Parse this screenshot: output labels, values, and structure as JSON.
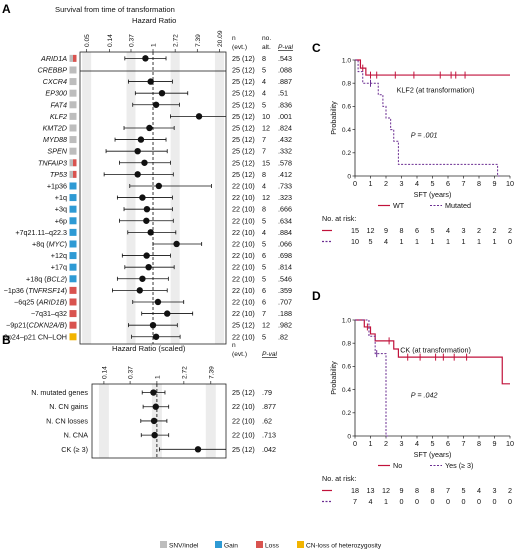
{
  "figure": {
    "panel_labels": [
      "A",
      "B",
      "C",
      "D"
    ],
    "colors": {
      "snv_indel": "#bdbdbd",
      "gain": "#2e9ad4",
      "loss": "#d9534f",
      "cn_loh": "#f2b400",
      "wt_line": "#c1123b",
      "mutated_line": "#6a2c91",
      "band": "#ececec"
    },
    "legend": [
      {
        "label": "SNV/indel",
        "color": "#bdbdbd"
      },
      {
        "label": "Gain",
        "color": "#2e9ad4"
      },
      {
        "label": "Loss",
        "color": "#d9534f"
      },
      {
        "label": "CN-loss of heterozygosity",
        "color": "#f2b400"
      }
    ]
  },
  "chart_data": [
    {
      "type": "scatter",
      "panel": "A",
      "title": "Survival from time of transformation",
      "xlabel": "Hazard Ratio",
      "x_scale": "log",
      "ticks": [
        "0.05",
        "0.14",
        "0.37",
        "1",
        "2.72",
        "7.39",
        "20.09"
      ],
      "tick_values": [
        0.05,
        0.14,
        0.37,
        1,
        2.72,
        7.39,
        20.09
      ],
      "reference_line": 1,
      "columns": {
        "n": "n",
        "n_sub": "(evt.)",
        "alt": "no.",
        "alt_sub": "alt.",
        "p": "P-val"
      },
      "rows": [
        {
          "label": "ARID1A",
          "italic": true,
          "types": [
            "snv_indel",
            "loss"
          ],
          "hr": 0.71,
          "lo": 0.28,
          "hi": 1.8,
          "n": "25 (12)",
          "alt": "8",
          "p": ".543"
        },
        {
          "label": "CREBBP",
          "italic": true,
          "types": [
            "snv_indel"
          ],
          "hr": null,
          "lo": null,
          "hi": null,
          "n": "25 (12)",
          "alt": "5",
          "p": ".088"
        },
        {
          "label": "CXCR4",
          "italic": true,
          "types": [
            "snv_indel"
          ],
          "hr": 0.9,
          "lo": 0.33,
          "hi": 2.4,
          "n": "25 (12)",
          "alt": "4",
          "p": ".887"
        },
        {
          "label": "EP300",
          "italic": true,
          "types": [
            "snv_indel"
          ],
          "hr": 1.5,
          "lo": 0.45,
          "hi": 4.8,
          "n": "25 (12)",
          "alt": "4",
          "p": ".51"
        },
        {
          "label": "FAT4",
          "italic": true,
          "types": [
            "snv_indel"
          ],
          "hr": 1.15,
          "lo": 0.4,
          "hi": 3.3,
          "n": "25 (12)",
          "alt": "5",
          "p": ".836"
        },
        {
          "label": "KLF2",
          "italic": true,
          "types": [
            "snv_indel"
          ],
          "hr": 8.0,
          "lo": 2.2,
          "hi": 30,
          "n": "25 (12)",
          "alt": "10",
          "p": ".001"
        },
        {
          "label": "KMT2D",
          "italic": true,
          "types": [
            "snv_indel"
          ],
          "hr": 0.85,
          "lo": 0.27,
          "hi": 2.6,
          "n": "25 (12)",
          "alt": "12",
          "p": ".824"
        },
        {
          "label": "MYD88",
          "italic": true,
          "types": [
            "snv_indel"
          ],
          "hr": 0.58,
          "lo": 0.18,
          "hi": 1.8,
          "n": "25 (12)",
          "alt": "7",
          "p": ".432"
        },
        {
          "label": "SPEN",
          "italic": true,
          "types": [
            "snv_indel"
          ],
          "hr": 0.5,
          "lo": 0.12,
          "hi": 1.9,
          "n": "25 (12)",
          "alt": "7",
          "p": ".332"
        },
        {
          "label": "TNFAIP3",
          "italic": true,
          "types": [
            "snv_indel",
            "loss"
          ],
          "hr": 0.68,
          "lo": 0.22,
          "hi": 2.2,
          "n": "25 (12)",
          "alt": "15",
          "p": ".578"
        },
        {
          "label": "TP53",
          "italic": true,
          "types": [
            "snv_indel",
            "loss"
          ],
          "hr": 0.5,
          "lo": 0.11,
          "hi": 2.5,
          "n": "25 (12)",
          "alt": "8",
          "p": ".412"
        },
        {
          "label": "+1p36",
          "italic": false,
          "types": [
            "gain"
          ],
          "hr": 1.3,
          "lo": 0.35,
          "hi": 14,
          "n": "22 (10)",
          "alt": "4",
          "p": ".733"
        },
        {
          "label": "+1q",
          "italic": false,
          "types": [
            "gain"
          ],
          "hr": 0.62,
          "lo": 0.2,
          "hi": 2.4,
          "n": "22 (10)",
          "alt": "12",
          "p": ".323"
        },
        {
          "label": "+3q",
          "italic": false,
          "types": [
            "gain"
          ],
          "hr": 0.76,
          "lo": 0.27,
          "hi": 2.4,
          "n": "22 (10)",
          "alt": "8",
          "p": ".666"
        },
        {
          "label": "+6p",
          "italic": false,
          "types": [
            "gain"
          ],
          "hr": 0.74,
          "lo": 0.22,
          "hi": 2.5,
          "n": "22 (10)",
          "alt": "5",
          "p": ".634"
        },
        {
          "label": "+7q21.11–q22.3",
          "italic": false,
          "types": [
            "gain"
          ],
          "hr": 0.9,
          "lo": 0.32,
          "hi": 2.8,
          "n": "22 (10)",
          "alt": "4",
          "p": ".884"
        },
        {
          "label": "+8q (",
          "label_italic": "MYC",
          "label_end": ")",
          "italic": false,
          "types": [
            "gain"
          ],
          "hr": 2.9,
          "lo": 1.0,
          "hi": 9.0,
          "n": "22 (10)",
          "alt": "5",
          "p": ".066"
        },
        {
          "label": "+12q",
          "italic": false,
          "types": [
            "gain"
          ],
          "hr": 0.75,
          "lo": 0.25,
          "hi": 2.2,
          "n": "22 (10)",
          "alt": "6",
          "p": ".698"
        },
        {
          "label": "+17q",
          "italic": false,
          "types": [
            "gain"
          ],
          "hr": 0.82,
          "lo": 0.28,
          "hi": 2.6,
          "n": "22 (10)",
          "alt": "5",
          "p": ".814"
        },
        {
          "label": "+18q (",
          "label_italic": "BCL2",
          "label_end": ")",
          "italic": false,
          "types": [
            "gain"
          ],
          "hr": 0.62,
          "lo": 0.2,
          "hi": 2.0,
          "n": "22 (10)",
          "alt": "5",
          "p": ".546"
        },
        {
          "label": "−1p36 (",
          "label_italic": "TNFRSF14",
          "label_end": ")",
          "italic": false,
          "types": [
            "loss"
          ],
          "hr": 0.55,
          "lo": 0.16,
          "hi": 1.9,
          "n": "22 (10)",
          "alt": "6",
          "p": ".359"
        },
        {
          "label": "−6q25 (",
          "label_italic": "ARID1B",
          "label_end": ")",
          "italic": false,
          "types": [
            "loss"
          ],
          "hr": 1.25,
          "lo": 0.4,
          "hi": 4.0,
          "n": "22 (10)",
          "alt": "6",
          "p": ".707"
        },
        {
          "label": "−7q31–q32",
          "italic": false,
          "types": [
            "loss"
          ],
          "hr": 1.9,
          "lo": 0.6,
          "hi": 6.0,
          "n": "22 (10)",
          "alt": "7",
          "p": ".188"
        },
        {
          "label": "−9p21(",
          "label_italic": "CDKN2A/B",
          "label_end": ")",
          "italic": false,
          "types": [
            "loss"
          ],
          "hr": 1.0,
          "lo": 0.33,
          "hi": 3.0,
          "n": "25 (12)",
          "alt": "12",
          "p": ".982"
        },
        {
          "label": "9p24–p21 CN–LOH",
          "italic": false,
          "types": [
            "cn_loh"
          ],
          "hr": 1.15,
          "lo": 0.38,
          "hi": 3.4,
          "n": "22 (10)",
          "alt": "5",
          "p": ".82"
        }
      ]
    },
    {
      "type": "scatter",
      "panel": "B",
      "xlabel": "Hazard Ratio (scaled)",
      "x_scale": "log",
      "ticks": [
        "0.14",
        "0.37",
        "1",
        "2.72",
        "7.39"
      ],
      "tick_values": [
        0.14,
        0.37,
        1,
        2.72,
        7.39
      ],
      "reference_line": 1,
      "columns": {
        "n": "n",
        "n_sub": "(evt.)",
        "p": "P-val"
      },
      "rows": [
        {
          "label": "N. mutated genes",
          "hr": 0.88,
          "lo": 0.58,
          "hi": 1.35,
          "n": "25 (12)",
          "p": ".79"
        },
        {
          "label": "N. CN gains",
          "hr": 0.96,
          "lo": 0.6,
          "hi": 1.55,
          "n": "22 (10)",
          "p": ".877"
        },
        {
          "label": "N. CN losses",
          "hr": 0.9,
          "lo": 0.55,
          "hi": 1.45,
          "n": "22 (10)",
          "p": ".62"
        },
        {
          "label": "N. CNA",
          "hr": 0.92,
          "lo": 0.56,
          "hi": 1.55,
          "n": "22 (10)",
          "p": ".713"
        },
        {
          "label": "CK (≥ 3)",
          "hr": 4.6,
          "lo": 1.1,
          "hi": 20,
          "n": "25 (12)",
          "p": ".042"
        }
      ]
    },
    {
      "type": "line",
      "panel": "C",
      "title": "KLF2 (at transformation)",
      "xlabel": "SFT (years)",
      "ylabel": "Probability",
      "xlim": [
        0,
        10
      ],
      "ylim": [
        0,
        1
      ],
      "x_ticks": [
        0,
        1,
        2,
        3,
        4,
        5,
        6,
        7,
        8,
        9,
        10
      ],
      "y_ticks": [
        "0",
        "0.2",
        "0.4",
        "0.6",
        "0.8",
        "1.0"
      ],
      "annotation": "P = .001",
      "series": [
        {
          "name": "WT",
          "color": "#c1123b",
          "dashed": false,
          "steps": [
            [
              0,
              1.0
            ],
            [
              0.35,
              0.93
            ],
            [
              0.7,
              0.87
            ],
            [
              10,
              0.87
            ]
          ],
          "censors": [
            [
              0.5,
              0.93
            ],
            [
              1.0,
              0.87
            ],
            [
              1.4,
              0.87
            ],
            [
              2.6,
              0.87
            ],
            [
              3.8,
              0.87
            ],
            [
              5.5,
              0.87
            ],
            [
              6.2,
              0.87
            ],
            [
              6.5,
              0.87
            ],
            [
              7.1,
              0.87
            ]
          ]
        },
        {
          "name": "Mutated",
          "color": "#6a2c91",
          "dashed": true,
          "steps": [
            [
              0,
              1.0
            ],
            [
              0.2,
              0.9
            ],
            [
              0.5,
              0.8
            ],
            [
              1.5,
              0.7
            ],
            [
              1.8,
              0.6
            ],
            [
              2.0,
              0.5
            ],
            [
              2.3,
              0.4
            ],
            [
              2.5,
              0.3
            ],
            [
              2.8,
              0.1
            ],
            [
              9.2,
              0.0
            ]
          ],
          "censors": [
            [
              1.0,
              0.8
            ]
          ]
        }
      ],
      "risk_table": {
        "label": "No. at risk:",
        "rows": [
          {
            "color": "#c1123b",
            "values": [
              "15",
              "12",
              "9",
              "8",
              "6",
              "5",
              "4",
              "3",
              "2",
              "2",
              "2"
            ]
          },
          {
            "color": "#6a2c91",
            "values": [
              "10",
              "5",
              "4",
              "1",
              "1",
              "1",
              "1",
              "1",
              "1",
              "1",
              "0"
            ]
          }
        ]
      },
      "legend": [
        {
          "label": "WT",
          "color": "#c1123b",
          "dashed": false
        },
        {
          "label": "Mutated",
          "color": "#6a2c91",
          "dashed": true
        }
      ]
    },
    {
      "type": "line",
      "panel": "D",
      "title": "CK (at transformation)",
      "xlabel": "SFT (years)",
      "ylabel": "Probability",
      "xlim": [
        0,
        10
      ],
      "ylim": [
        0,
        1
      ],
      "x_ticks": [
        0,
        1,
        2,
        3,
        4,
        5,
        6,
        7,
        8,
        9,
        10
      ],
      "y_ticks": [
        "0",
        "0.2",
        "0.4",
        "0.6",
        "0.8",
        "1.0"
      ],
      "annotation": "P = .042",
      "series": [
        {
          "name": "No",
          "color": "#c1123b",
          "dashed": false,
          "steps": [
            [
              0,
              1.0
            ],
            [
              0.6,
              0.94
            ],
            [
              1.0,
              0.88
            ],
            [
              1.3,
              0.82
            ],
            [
              2.5,
              0.75
            ],
            [
              2.8,
              0.68
            ],
            [
              9.5,
              0.45
            ],
            [
              10,
              0.45
            ]
          ],
          "censors": [
            [
              0.8,
              0.94
            ],
            [
              2.2,
              0.82
            ],
            [
              3.4,
              0.68
            ],
            [
              4.2,
              0.68
            ],
            [
              5.2,
              0.68
            ],
            [
              5.7,
              0.68
            ],
            [
              6.4,
              0.68
            ],
            [
              7.2,
              0.68
            ]
          ]
        },
        {
          "name": "Yes (≥ 3)",
          "color": "#6a2c91",
          "dashed": true,
          "steps": [
            [
              0,
              1.0
            ],
            [
              0.9,
              0.86
            ],
            [
              1.3,
              0.71
            ],
            [
              2.0,
              0.0
            ]
          ],
          "censors": [
            [
              1.4,
              0.71
            ]
          ]
        }
      ],
      "risk_table": {
        "label": "No. at risk:",
        "rows": [
          {
            "color": "#c1123b",
            "values": [
              "18",
              "13",
              "12",
              "9",
              "8",
              "8",
              "7",
              "5",
              "4",
              "3",
              "2"
            ]
          },
          {
            "color": "#6a2c91",
            "values": [
              "7",
              "4",
              "1",
              "0",
              "0",
              "0",
              "0",
              "0",
              "0",
              "0",
              "0"
            ]
          }
        ]
      },
      "legend": [
        {
          "label": "No",
          "color": "#c1123b",
          "dashed": false
        },
        {
          "label": "Yes (≥ 3)",
          "color": "#6a2c91",
          "dashed": true
        }
      ]
    }
  ]
}
